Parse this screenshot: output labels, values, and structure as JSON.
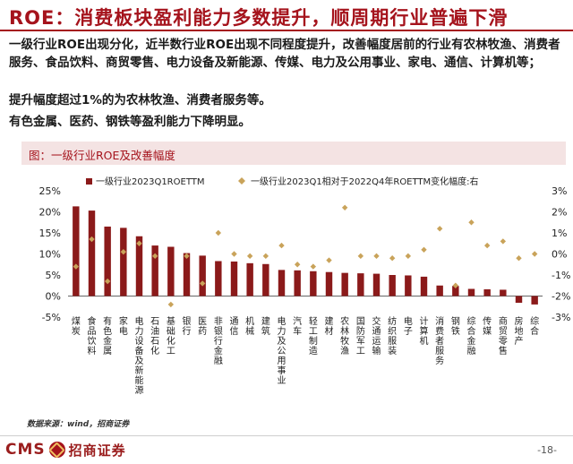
{
  "header": {
    "title": "ROE：消费板块盈利能力多数提升，顺周期行业普遍下滑"
  },
  "body": {
    "para1": "一级行业ROE出现分化，近半数行业ROE出现不同程度提升，改善幅度居前的行业有农林牧渔、消费者服务、食品饮料、商贸零售、电力设备及新能源、传媒、电力及公用事业、家电、通信、计算机等；",
    "para2": "提升幅度超过1%的为农林牧渔、消费者服务等。",
    "para3": "有色金属、医药、钢铁等盈利能力下降明显。"
  },
  "chart_header": {
    "label": "图：一级行业ROE及改善幅度"
  },
  "chart_data": {
    "type": "bar",
    "categories": [
      "煤炭",
      "食品饮料",
      "有色金属",
      "家电",
      "电力设备及新能源",
      "石油石化",
      "基础化工",
      "银行",
      "医药",
      "非银行金融",
      "通信",
      "机械",
      "建筑",
      "电力及公用事业",
      "汽车",
      "轻工制造",
      "建材",
      "农林牧渔",
      "国防军工",
      "交通运输",
      "纺织服装",
      "电子",
      "计算机",
      "消费者服务",
      "钢铁",
      "综合金融",
      "传媒",
      "商贸零售",
      "房地产",
      "综合"
    ],
    "series": [
      {
        "name": "一级行业2023Q1ROETTM",
        "kind": "bar",
        "axis": "left",
        "color": "#8b1a1a",
        "values": [
          21.3,
          20.3,
          16.5,
          16.2,
          14.2,
          12.0,
          11.7,
          10.2,
          9.6,
          8.3,
          8.2,
          7.8,
          7.6,
          6.2,
          6.1,
          5.9,
          5.7,
          5.5,
          5.4,
          5.3,
          5.0,
          4.9,
          4.6,
          2.5,
          2.4,
          1.7,
          1.6,
          1.5,
          -1.6,
          -2.0
        ]
      },
      {
        "name": "一级行业2023Q1相对于2022Q4年ROETTM变化幅度:右",
        "kind": "scatter",
        "axis": "right",
        "color": "#c9a35a",
        "values": [
          -0.6,
          0.7,
          -1.3,
          0.1,
          0.5,
          -0.1,
          -2.4,
          -0.1,
          -1.4,
          1.0,
          0.0,
          -0.1,
          -0.1,
          0.4,
          -0.5,
          -0.6,
          -0.3,
          2.2,
          -0.1,
          -0.1,
          -0.2,
          -0.1,
          0.2,
          1.2,
          -1.5,
          1.5,
          0.4,
          0.6,
          -0.2,
          0.0
        ]
      }
    ],
    "left_axis": {
      "min": -5,
      "max": 25,
      "ticks": [
        "-5%",
        "0%",
        "5%",
        "10%",
        "15%",
        "20%",
        "25%"
      ]
    },
    "right_axis": {
      "min": -3,
      "max": 3,
      "ticks": [
        "-3%",
        "-2%",
        "-1%",
        "0%",
        "1%",
        "2%",
        "3%"
      ]
    },
    "legend_position": "top"
  },
  "footer": {
    "source": "数据来源：wind，招商证券",
    "logo_text": "CMS",
    "logo_cn": "招商证券",
    "page": "-18-"
  }
}
